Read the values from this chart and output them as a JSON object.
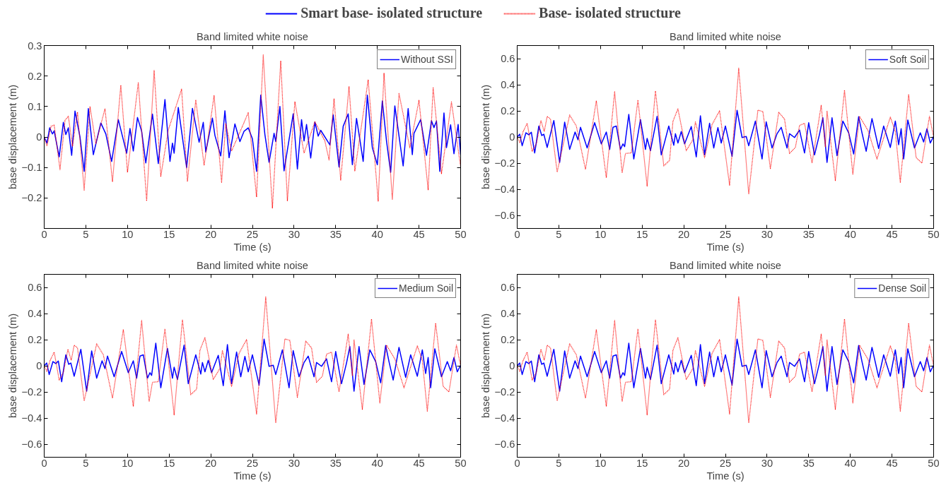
{
  "chart_data": [
    {
      "type": "other",
      "legend": "top",
      "series": [
        {
          "name": "Smart base- isolated structure",
          "color": "#0000ff",
          "line_style": "solid"
        },
        {
          "name": "Base- isolated structure",
          "color": "#ff0000",
          "line_style": "dotted"
        }
      ]
    },
    {
      "type": "line",
      "title": "Band limited white noise",
      "xlabel": "Time (s)",
      "ylabel": "base displacement (m)",
      "xlim": [
        0,
        50
      ],
      "xticks": [
        0,
        5,
        10,
        15,
        20,
        25,
        30,
        35,
        40,
        45,
        50
      ],
      "ylim": [
        -0.3,
        0.3
      ],
      "yticks": [
        {
          "value": -0.3,
          "label": null
        },
        -0.2,
        -0.1,
        0,
        0.1,
        0.2,
        0.3
      ],
      "grid": false,
      "legend": "top right",
      "marker": "none",
      "series": [
        {
          "name": "Without SSI",
          "color": "#0000ff",
          "line_style": "solid",
          "x": [
            0,
            0.33,
            0.66,
            0.99,
            1.2,
            1.8,
            2.3,
            2.6,
            2.9,
            3.3,
            3.7,
            4.3,
            4.8,
            5.3,
            5.9,
            6.8,
            7.4,
            8.1,
            8.9,
            9.9,
            10.3,
            10.7,
            11.2,
            11.7,
            12.2,
            13.0,
            13.7,
            14.5,
            15.1,
            15.4,
            15.6,
            16.1,
            17.1,
            17.8,
            18.6,
            19.1,
            19.4,
            20.2,
            20.5,
            21.2,
            21.7,
            22.2,
            22.9,
            23.5,
            24.0,
            24.5,
            25.0,
            25.5,
            26.0,
            26.5,
            27.0,
            27.6,
            27.8,
            28.3,
            28.8,
            29.9,
            30.4,
            30.9,
            31.2,
            31.5,
            32.0,
            32.5,
            32.9,
            33.2,
            34.3,
            34.7,
            35.4,
            35.9,
            36.5,
            37.0,
            37.5,
            37.9,
            38.3,
            38.8,
            39.4,
            40.0,
            40.6,
            41.1,
            41.6,
            42.1,
            43.1,
            43.7,
            44.2,
            44.4,
            45.2,
            45.9,
            46.5,
            46.8,
            47.1,
            47.5,
            48.0,
            48.3,
            48.8,
            49.2,
            49.7,
            50
          ],
          "values": [
            0,
            -0.02,
            0.03,
            0.01,
            0.02,
            -0.065,
            0.048,
            0.008,
            0.03,
            -0.06,
            0.085,
            0,
            -0.113,
            0.093,
            -0.058,
            0.046,
            0.01,
            -0.08,
            0.057,
            -0.053,
            0.028,
            -0.046,
            0.064,
            0.019,
            -0.085,
            0.075,
            -0.087,
            0.123,
            -0.08,
            -0.02,
            -0.053,
            0.097,
            -0.1,
            0.094,
            -0.017,
            0.048,
            -0.049,
            0.062,
            0.005,
            -0.062,
            0.086,
            -0.068,
            0.043,
            -0.015,
            0.019,
            0.03,
            -0.006,
            -0.113,
            0.137,
            0.008,
            -0.083,
            0.012,
            -0.015,
            0.1,
            -0.111,
            0.076,
            -0.105,
            0.057,
            -0.013,
            0.041,
            -0.069,
            0.049,
            0.003,
            0.022,
            -0.026,
            0.073,
            -0.098,
            0.035,
            0.076,
            -0.091,
            0.061,
            -0.008,
            -0.08,
            0.137,
            -0.035,
            -0.091,
            0.118,
            -0.013,
            -0.116,
            0.102,
            -0.095,
            0.093,
            -0.058,
            0.012,
            0.057,
            -0.06,
            0.053,
            0.031,
            0.052,
            -0.113,
            0.079,
            -0.035,
            0.04,
            -0.055,
            0.041,
            -0.058
          ]
        },
        {
          "color": "#ff0000",
          "line_style": "dotted",
          "x": [
            0,
            0.33,
            0.82,
            1.2,
            1.9,
            2.5,
            2.9,
            3.4,
            4.0,
            4.8,
            5.5,
            6.2,
            7.3,
            8.2,
            9.2,
            10.0,
            11.3,
            12.3,
            13.2,
            14.0,
            14.9,
            16.5,
            17.2,
            18.2,
            19.2,
            20.4,
            21.3,
            21.8,
            22.5,
            23.8,
            24.5,
            25.5,
            26.3,
            27.4,
            28.4,
            29.2,
            30.1,
            31.2,
            32.5,
            33.7,
            34.2,
            34.8,
            35.6,
            36.6,
            37.3,
            38.9,
            40.1,
            40.8,
            41.8,
            42.6,
            43.9,
            45.0,
            46.1,
            46.7,
            47.7,
            48.9,
            50
          ],
          "values": [
            0,
            -0.03,
            0.035,
            0.039,
            -0.107,
            0.055,
            0.068,
            -0.03,
            0.082,
            -0.174,
            0.1,
            -0.022,
            0.093,
            -0.147,
            0.17,
            -0.116,
            0.179,
            -0.21,
            0.218,
            -0.129,
            0.023,
            0.157,
            -0.146,
            0.122,
            -0.093,
            0.136,
            -0.149,
            0.044,
            -0.046,
            0.035,
            0.08,
            -0.197,
            0.269,
            -0.234,
            0.25,
            -0.21,
            0.116,
            -0.053,
            0.05,
            -0.013,
            -0.075,
            0.125,
            -0.141,
            0.166,
            -0.111,
            0.187,
            -0.21,
            0.209,
            -0.206,
            0.143,
            -0.035,
            0.12,
            -0.173,
            0.163,
            -0.12,
            0.115,
            -0.098
          ]
        }
      ]
    },
    {
      "type": "line",
      "title": "Band limited white noise",
      "xlabel": "Time (s)",
      "ylabel": "base displacement (m)",
      "xlim": [
        0,
        50
      ],
      "xticks": [
        0,
        5,
        10,
        15,
        20,
        25,
        30,
        35,
        40,
        45,
        50
      ],
      "ylim": [
        -0.7,
        0.7
      ],
      "yticks": [
        -0.6,
        -0.4,
        -0.2,
        0,
        0.2,
        0.4,
        0.6
      ],
      "grid": false,
      "legend": "top right",
      "marker": "none",
      "series": [
        {
          "name": "Soft Soil",
          "color": "#0000ff",
          "line_style": "solid",
          "x": [
            0,
            0.3,
            0.6,
            1.05,
            1.4,
            1.7,
            2.1,
            2.6,
            2.95,
            3.2,
            3.6,
            4.4,
            5.1,
            5.7,
            6.3,
            6.95,
            7.3,
            7.6,
            8.4,
            9.3,
            10.1,
            10.7,
            11.1,
            11.5,
            11.9,
            12.4,
            12.7,
            12.9,
            13.4,
            14.0,
            14.8,
            15.4,
            15.6,
            16.0,
            16.8,
            17.3,
            18.2,
            18.8,
            19.0,
            19.3,
            19.7,
            20.1,
            20.9,
            21.5,
            22.0,
            22.5,
            23.1,
            23.6,
            24.1,
            24.5,
            25.0,
            25.8,
            26.4,
            27.0,
            27.5,
            27.8,
            28.6,
            29.4,
            29.9,
            30.6,
            31.2,
            31.7,
            32.4,
            32.7,
            33.3,
            33.9,
            34.5,
            35.0,
            35.7,
            36.3,
            36.7,
            37.2,
            37.8,
            38.4,
            39.1,
            39.8,
            40.4,
            41.0,
            41.4,
            41.9,
            42.6,
            43.4,
            44.0,
            44.8,
            45.4,
            45.8,
            46.1,
            46.4,
            46.9,
            47.7,
            48.4,
            48.8,
            49.2,
            49.6,
            50
          ],
          "values": [
            0,
            0.021,
            -0.067,
            0.032,
            0.017,
            0.036,
            -0.122,
            0.084,
            0.011,
            0.021,
            -0.08,
            0.126,
            -0.194,
            0.114,
            -0.095,
            0.038,
            -0.021,
            0.074,
            -0.084,
            0.109,
            -0.053,
            0.038,
            -0.095,
            0.074,
            0.084,
            -0.095,
            -0.053,
            -0.074,
            0.173,
            -0.168,
            0.133,
            -0.095,
            -0.011,
            -0.105,
            0.158,
            -0.137,
            0.084,
            -0.063,
            0.025,
            -0.046,
            0.042,
            -0.053,
            0.08,
            -0.152,
            0.162,
            -0.137,
            0.105,
            -0.084,
            0.072,
            -0.046,
            0.084,
            -0.147,
            0.204,
            -0.004,
            0.004,
            -0.067,
            0.122,
            -0.168,
            0.116,
            -0.084,
            0.025,
            0.074,
            -0.084,
            0.025,
            -0.004,
            0.053,
            -0.122,
            0.109,
            -0.137,
            0.021,
            0.147,
            -0.194,
            0.147,
            -0.143,
            0.122,
            0.032,
            -0.13,
            0.156,
            0.032,
            -0.109,
            0.141,
            -0.088,
            0.084,
            -0.08,
            0.122,
            -0.059,
            0.063,
            -0.168,
            0.13,
            -0.084,
            0.032,
            -0.038,
            0.063,
            -0.046,
            0.004
          ]
        },
        {
          "color": "#ff0000",
          "line_style": "dotted",
          "x": [
            0,
            0.3,
            0.72,
            1.2,
            1.8,
            2.3,
            2.85,
            3.25,
            3.6,
            4.0,
            4.8,
            6.3,
            7.1,
            8.2,
            9.5,
            10.7,
            11.7,
            12.6,
            13.0,
            13.7,
            14.5,
            15.6,
            16.6,
            17.6,
            18.3,
            18.7,
            19.3,
            20.3,
            21.1,
            21.4,
            22.5,
            23.4,
            24.3,
            25.5,
            26.6,
            27.8,
            28.9,
            29.5,
            30.4,
            31.4,
            32.1,
            32.7,
            33.4,
            33.9,
            34.5,
            35.4,
            36.5,
            37.0,
            37.2,
            38.2,
            39.3,
            40.3,
            41.1,
            42.1,
            43.2,
            44.8,
            45.4,
            46.0,
            47.0,
            47.9,
            48.6,
            49.5,
            50
          ],
          "values": [
            0,
            -0.042,
            0.042,
            0.105,
            -0.109,
            -0.053,
            0.126,
            0.042,
            0.158,
            0.137,
            -0.269,
            0.168,
            0.084,
            -0.248,
            0.278,
            -0.312,
            0.347,
            -0.274,
            -0.126,
            -0.122,
            0.284,
            -0.375,
            0.354,
            -0.221,
            -0.179,
            0.12,
            0.215,
            -0.105,
            -0.021,
            0.116,
            -0.158,
            0.095,
            0.2,
            -0.368,
            0.526,
            -0.438,
            0.206,
            0.194,
            -0.242,
            0.189,
            0.137,
            -0.126,
            -0.08,
            0.088,
            0.105,
            -0.2,
            0.242,
            -0.074,
            0.2,
            -0.333,
            0.358,
            -0.284,
            0.158,
            0.053,
            -0.168,
            0.152,
            0.042,
            -0.347,
            0.326,
            -0.158,
            -0.2,
            0.158,
            0
          ]
        }
      ]
    },
    {
      "type": "line",
      "title": "Band limited white noise",
      "xlabel": "Time (s)",
      "ylabel": "base displacement (m)",
      "xlim": [
        0,
        50
      ],
      "xticks": [
        0,
        5,
        10,
        15,
        20,
        25,
        30,
        35,
        40,
        45,
        50
      ],
      "ylim": [
        -0.7,
        0.7
      ],
      "yticks": [
        -0.6,
        -0.4,
        -0.2,
        0,
        0.2,
        0.4,
        0.6
      ],
      "grid": false,
      "legend": "top right",
      "marker": "none",
      "series": [
        {
          "name": "Medium Soil",
          "color": "#0000ff",
          "line_style": "solid",
          "x": [
            0,
            0.3,
            0.6,
            1.05,
            1.4,
            1.7,
            2.1,
            2.6,
            2.95,
            3.2,
            3.6,
            4.4,
            5.1,
            5.7,
            6.3,
            6.95,
            7.3,
            7.6,
            8.4,
            9.3,
            10.1,
            10.7,
            11.1,
            11.5,
            11.9,
            12.4,
            12.7,
            12.9,
            13.4,
            14.0,
            14.8,
            15.4,
            15.6,
            16.0,
            16.8,
            17.3,
            18.2,
            18.8,
            19.0,
            19.3,
            19.7,
            20.1,
            20.9,
            21.5,
            22.0,
            22.5,
            23.1,
            23.6,
            24.1,
            24.5,
            25.0,
            25.8,
            26.4,
            27.0,
            27.5,
            27.8,
            28.6,
            29.4,
            29.9,
            30.6,
            31.2,
            31.7,
            32.4,
            32.7,
            33.3,
            33.9,
            34.5,
            35.0,
            35.7,
            36.3,
            36.7,
            37.2,
            37.8,
            38.4,
            39.1,
            39.8,
            40.4,
            41.0,
            41.4,
            41.9,
            42.6,
            43.4,
            44.0,
            44.8,
            45.4,
            45.8,
            46.1,
            46.4,
            46.9,
            47.7,
            48.4,
            48.8,
            49.2,
            49.6,
            50
          ],
          "values": [
            0,
            0.021,
            -0.067,
            0.032,
            0.017,
            0.036,
            -0.122,
            0.084,
            0.011,
            0.021,
            -0.08,
            0.126,
            -0.194,
            0.114,
            -0.095,
            0.038,
            -0.021,
            0.074,
            -0.084,
            0.109,
            -0.053,
            0.038,
            -0.095,
            0.074,
            0.084,
            -0.095,
            -0.053,
            -0.074,
            0.173,
            -0.168,
            0.133,
            -0.095,
            -0.011,
            -0.105,
            0.158,
            -0.137,
            0.084,
            -0.063,
            0.025,
            -0.046,
            0.042,
            -0.053,
            0.08,
            -0.152,
            0.162,
            -0.137,
            0.105,
            -0.084,
            0.072,
            -0.046,
            0.084,
            -0.147,
            0.204,
            -0.004,
            0.004,
            -0.067,
            0.122,
            -0.168,
            0.116,
            -0.084,
            0.025,
            0.074,
            -0.084,
            0.025,
            -0.004,
            0.053,
            -0.122,
            0.109,
            -0.137,
            0.021,
            0.147,
            -0.194,
            0.147,
            -0.143,
            0.122,
            0.032,
            -0.13,
            0.156,
            0.032,
            -0.109,
            0.141,
            -0.088,
            0.084,
            -0.08,
            0.122,
            -0.059,
            0.063,
            -0.168,
            0.13,
            -0.084,
            0.032,
            -0.038,
            0.063,
            -0.046,
            0.004
          ]
        },
        {
          "color": "#ff0000",
          "line_style": "dotted",
          "x": [
            0,
            0.3,
            0.72,
            1.2,
            1.8,
            2.3,
            2.85,
            3.25,
            3.6,
            4.0,
            4.8,
            6.3,
            7.1,
            8.2,
            9.5,
            10.7,
            11.7,
            12.6,
            13.0,
            13.7,
            14.5,
            15.6,
            16.6,
            17.6,
            18.3,
            18.7,
            19.3,
            20.3,
            21.1,
            21.4,
            22.5,
            23.4,
            24.3,
            25.5,
            26.6,
            27.8,
            28.9,
            29.5,
            30.4,
            31.4,
            32.1,
            32.7,
            33.4,
            33.9,
            34.5,
            35.4,
            36.5,
            37.0,
            37.2,
            38.2,
            39.3,
            40.3,
            41.1,
            42.1,
            43.2,
            44.8,
            45.4,
            46.0,
            47.0,
            47.9,
            48.6,
            49.5,
            50
          ],
          "values": [
            0,
            -0.042,
            0.042,
            0.105,
            -0.109,
            -0.053,
            0.126,
            0.042,
            0.158,
            0.137,
            -0.269,
            0.168,
            0.084,
            -0.248,
            0.278,
            -0.312,
            0.347,
            -0.274,
            -0.126,
            -0.122,
            0.284,
            -0.375,
            0.354,
            -0.221,
            -0.179,
            0.12,
            0.215,
            -0.105,
            -0.021,
            0.116,
            -0.158,
            0.095,
            0.2,
            -0.368,
            0.526,
            -0.438,
            0.206,
            0.194,
            -0.242,
            0.189,
            0.137,
            -0.126,
            -0.08,
            0.088,
            0.105,
            -0.2,
            0.242,
            -0.074,
            0.2,
            -0.333,
            0.358,
            -0.284,
            0.158,
            0.053,
            -0.168,
            0.152,
            0.042,
            -0.347,
            0.326,
            -0.158,
            -0.2,
            0.158,
            0
          ]
        }
      ]
    },
    {
      "type": "line",
      "title": "Band limited white noise",
      "xlabel": "Time (s)",
      "ylabel": "base displacement (m)",
      "xlim": [
        0,
        50
      ],
      "xticks": [
        0,
        5,
        10,
        15,
        20,
        25,
        30,
        35,
        40,
        45,
        50
      ],
      "ylim": [
        -0.7,
        0.7
      ],
      "yticks": [
        -0.6,
        -0.4,
        -0.2,
        0,
        0.2,
        0.4,
        0.6
      ],
      "grid": false,
      "legend": "top right",
      "marker": "none",
      "series": [
        {
          "name": "Dense Soil",
          "color": "#0000ff",
          "line_style": "solid",
          "x": [
            0,
            0.3,
            0.6,
            1.05,
            1.4,
            1.7,
            2.1,
            2.6,
            2.95,
            3.2,
            3.6,
            4.4,
            5.1,
            5.7,
            6.3,
            6.95,
            7.3,
            7.6,
            8.4,
            9.3,
            10.1,
            10.7,
            11.1,
            11.5,
            11.9,
            12.4,
            12.7,
            12.9,
            13.4,
            14.0,
            14.8,
            15.4,
            15.6,
            16.0,
            16.8,
            17.3,
            18.2,
            18.8,
            19.0,
            19.3,
            19.7,
            20.1,
            20.9,
            21.5,
            22.0,
            22.5,
            23.1,
            23.6,
            24.1,
            24.5,
            25.0,
            25.8,
            26.4,
            27.0,
            27.5,
            27.8,
            28.6,
            29.4,
            29.9,
            30.6,
            31.2,
            31.7,
            32.4,
            32.7,
            33.3,
            33.9,
            34.5,
            35.0,
            35.7,
            36.3,
            36.7,
            37.2,
            37.8,
            38.4,
            39.1,
            39.8,
            40.4,
            41.0,
            41.4,
            41.9,
            42.6,
            43.4,
            44.0,
            44.8,
            45.4,
            45.8,
            46.1,
            46.4,
            46.9,
            47.7,
            48.4,
            48.8,
            49.2,
            49.6,
            50
          ],
          "values": [
            0,
            0.021,
            -0.067,
            0.032,
            0.017,
            0.036,
            -0.122,
            0.084,
            0.011,
            0.021,
            -0.08,
            0.126,
            -0.194,
            0.114,
            -0.095,
            0.038,
            -0.021,
            0.074,
            -0.084,
            0.109,
            -0.053,
            0.038,
            -0.095,
            0.074,
            0.084,
            -0.095,
            -0.053,
            -0.074,
            0.173,
            -0.168,
            0.133,
            -0.095,
            -0.011,
            -0.105,
            0.158,
            -0.137,
            0.084,
            -0.063,
            0.025,
            -0.046,
            0.042,
            -0.053,
            0.08,
            -0.152,
            0.162,
            -0.137,
            0.105,
            -0.084,
            0.072,
            -0.046,
            0.084,
            -0.147,
            0.204,
            -0.004,
            0.004,
            -0.067,
            0.122,
            -0.168,
            0.116,
            -0.084,
            0.025,
            0.074,
            -0.084,
            0.025,
            -0.004,
            0.053,
            -0.122,
            0.109,
            -0.137,
            0.021,
            0.147,
            -0.194,
            0.147,
            -0.143,
            0.122,
            0.032,
            -0.13,
            0.156,
            0.032,
            -0.109,
            0.141,
            -0.088,
            0.084,
            -0.08,
            0.122,
            -0.059,
            0.063,
            -0.168,
            0.13,
            -0.084,
            0.032,
            -0.038,
            0.063,
            -0.046,
            0.004
          ]
        },
        {
          "color": "#ff0000",
          "line_style": "dotted",
          "x": [
            0,
            0.3,
            0.72,
            1.2,
            1.8,
            2.3,
            2.85,
            3.25,
            3.6,
            4.0,
            4.8,
            6.3,
            7.1,
            8.2,
            9.5,
            10.7,
            11.7,
            12.6,
            13.0,
            13.7,
            14.5,
            15.6,
            16.6,
            17.6,
            18.3,
            18.7,
            19.3,
            20.3,
            21.1,
            21.4,
            22.5,
            23.4,
            24.3,
            25.5,
            26.6,
            27.8,
            28.9,
            29.5,
            30.4,
            31.4,
            32.1,
            32.7,
            33.4,
            33.9,
            34.5,
            35.4,
            36.5,
            37.0,
            37.2,
            38.2,
            39.3,
            40.3,
            41.1,
            42.1,
            43.2,
            44.8,
            45.4,
            46.0,
            47.0,
            47.9,
            48.6,
            49.5,
            50
          ],
          "values": [
            0,
            -0.042,
            0.042,
            0.105,
            -0.109,
            -0.053,
            0.126,
            0.042,
            0.158,
            0.137,
            -0.269,
            0.168,
            0.084,
            -0.248,
            0.278,
            -0.312,
            0.347,
            -0.274,
            -0.126,
            -0.122,
            0.284,
            -0.375,
            0.354,
            -0.221,
            -0.179,
            0.12,
            0.215,
            -0.105,
            -0.021,
            0.116,
            -0.158,
            0.095,
            0.2,
            -0.368,
            0.526,
            -0.438,
            0.206,
            0.194,
            -0.242,
            0.189,
            0.137,
            -0.126,
            -0.08,
            0.088,
            0.105,
            -0.2,
            0.242,
            -0.074,
            0.2,
            -0.333,
            0.358,
            -0.284,
            0.158,
            0.053,
            -0.168,
            0.152,
            0.042,
            -0.347,
            0.326,
            -0.158,
            -0.2,
            0.158,
            0
          ]
        }
      ]
    }
  ]
}
